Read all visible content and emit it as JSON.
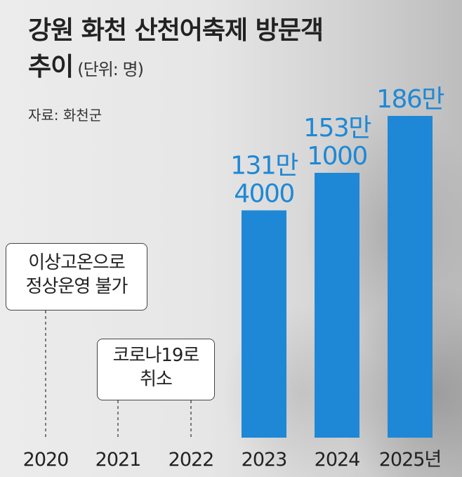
{
  "title_line1": "강원 화천 산천어축제 방문객",
  "title_line2": "추이",
  "unit": "(단위: 명)",
  "source": "자료: 화천군",
  "colors": {
    "bar": "#1e88d6",
    "label": "#1e88d6"
  },
  "chart_data": {
    "type": "bar",
    "title": "강원 화천 산천어축제 방문객 추이",
    "ylabel": "",
    "xlabel": "",
    "categories": [
      "2020",
      "2021",
      "2022",
      "2023",
      "2024",
      "2025년"
    ],
    "values": [
      null,
      null,
      null,
      1314000,
      1531000,
      1860000
    ],
    "value_labels": [
      null,
      null,
      null,
      [
        "131만",
        "4000"
      ],
      [
        "153만",
        "1000"
      ],
      [
        "186만"
      ]
    ],
    "ylim": [
      0,
      2000000
    ],
    "grid": false,
    "legend": "none",
    "annotations": [
      {
        "category": "2020",
        "lines": [
          "이상고온으로",
          "정상운영 불가"
        ]
      },
      {
        "category": "2021–2022",
        "lines": [
          "코로나19로",
          "취소"
        ]
      }
    ]
  }
}
